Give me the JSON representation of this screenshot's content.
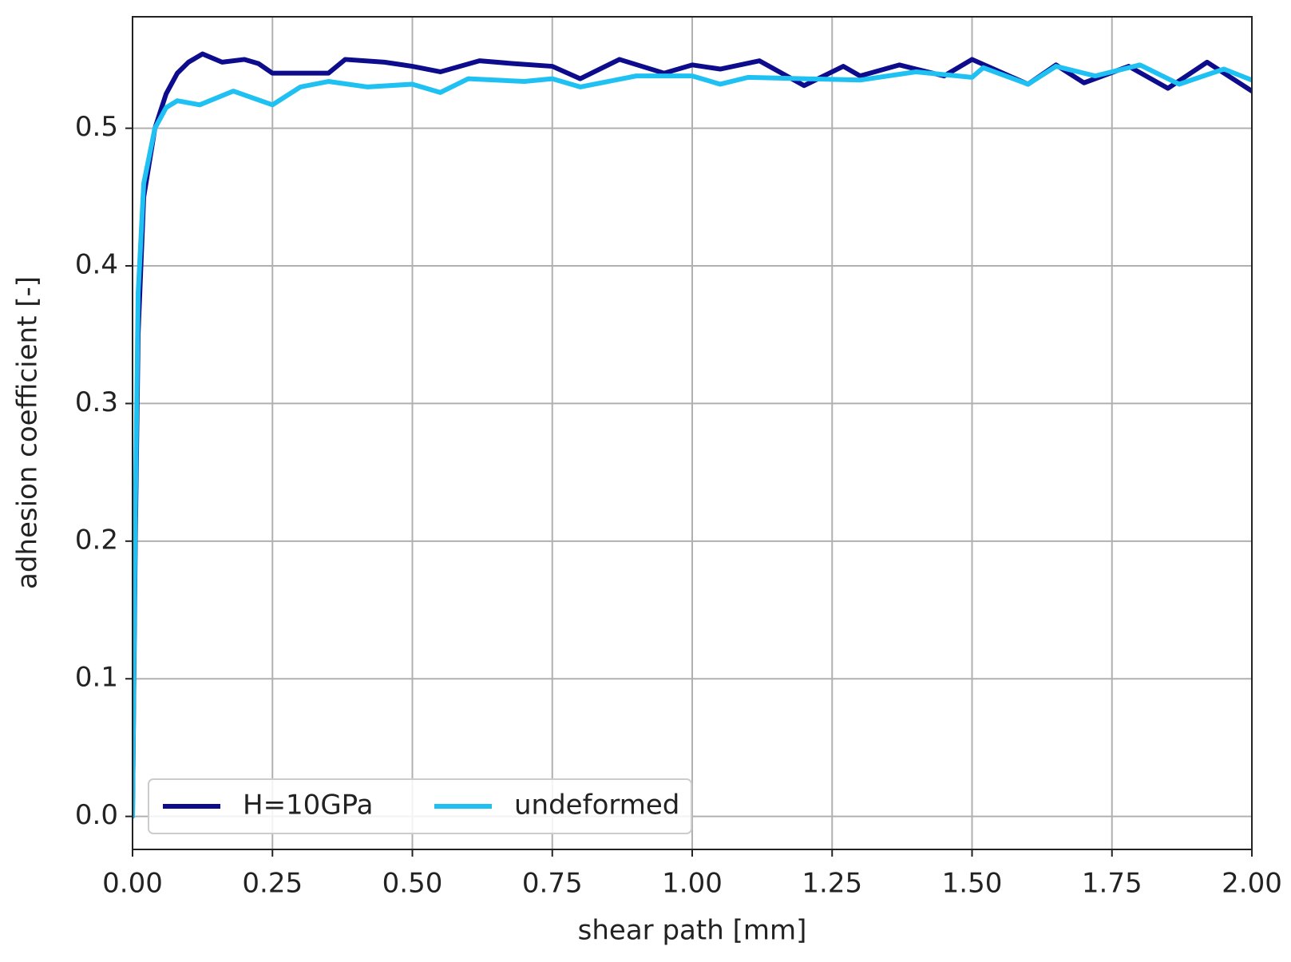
{
  "chart_data": {
    "type": "line",
    "xlabel": "shear path [mm]",
    "ylabel": "adhesion coefficient [-]",
    "xlim": [
      0,
      2
    ],
    "ylim": [
      -0.024,
      0.581
    ],
    "xticks": [
      {
        "value": 0,
        "label": "0.00"
      },
      {
        "value": 0.25,
        "label": "0.25"
      },
      {
        "value": 0.5,
        "label": "0.50"
      },
      {
        "value": 0.75,
        "label": "0.75"
      },
      {
        "value": 1,
        "label": "1.00"
      },
      {
        "value": 1.25,
        "label": "1.25"
      },
      {
        "value": 1.5,
        "label": "1.50"
      },
      {
        "value": 1.75,
        "label": "1.75"
      },
      {
        "value": 2,
        "label": "2.00"
      }
    ],
    "yticks": [
      {
        "value": 0,
        "label": "0.0"
      },
      0.1,
      0.2,
      0.3,
      0.4,
      0.5
    ],
    "grid": true,
    "legend": "lower left",
    "series": [
      {
        "name": "H=10GPa",
        "color": "#0c0c8c",
        "x": [
          0,
          0.005,
          0.01,
          0.02,
          0.04,
          0.06,
          0.08,
          0.1,
          0.125,
          0.16,
          0.2,
          0.225,
          0.25,
          0.3,
          0.35,
          0.38,
          0.45,
          0.5,
          0.55,
          0.62,
          0.68,
          0.75,
          0.8,
          0.87,
          0.95,
          1.0,
          1.05,
          1.12,
          1.2,
          1.27,
          1.3,
          1.37,
          1.45,
          1.5,
          1.6,
          1.65,
          1.7,
          1.78,
          1.85,
          1.92,
          2.0
        ],
        "values": [
          0,
          0.2,
          0.35,
          0.45,
          0.5,
          0.525,
          0.54,
          0.548,
          0.554,
          0.548,
          0.55,
          0.547,
          0.54,
          0.54,
          0.54,
          0.55,
          0.548,
          0.545,
          0.541,
          0.549,
          0.547,
          0.545,
          0.536,
          0.55,
          0.54,
          0.546,
          0.543,
          0.549,
          0.531,
          0.545,
          0.538,
          0.546,
          0.538,
          0.55,
          0.532,
          0.546,
          0.533,
          0.545,
          0.529,
          0.548,
          0.527
        ]
      },
      {
        "name": "undeformed",
        "color": "#1ec1f2",
        "x": [
          0,
          0.005,
          0.01,
          0.02,
          0.04,
          0.06,
          0.08,
          0.12,
          0.18,
          0.25,
          0.3,
          0.35,
          0.42,
          0.5,
          0.55,
          0.6,
          0.7,
          0.75,
          0.8,
          0.9,
          1.0,
          1.05,
          1.1,
          1.2,
          1.3,
          1.4,
          1.5,
          1.52,
          1.6,
          1.65,
          1.72,
          1.8,
          1.87,
          1.95,
          2.0
        ],
        "values": [
          0,
          0.22,
          0.38,
          0.46,
          0.5,
          0.515,
          0.52,
          0.517,
          0.527,
          0.517,
          0.53,
          0.534,
          0.53,
          0.532,
          0.526,
          0.536,
          0.534,
          0.536,
          0.53,
          0.538,
          0.538,
          0.532,
          0.537,
          0.536,
          0.535,
          0.541,
          0.537,
          0.544,
          0.532,
          0.545,
          0.538,
          0.546,
          0.532,
          0.543,
          0.535
        ]
      }
    ]
  }
}
